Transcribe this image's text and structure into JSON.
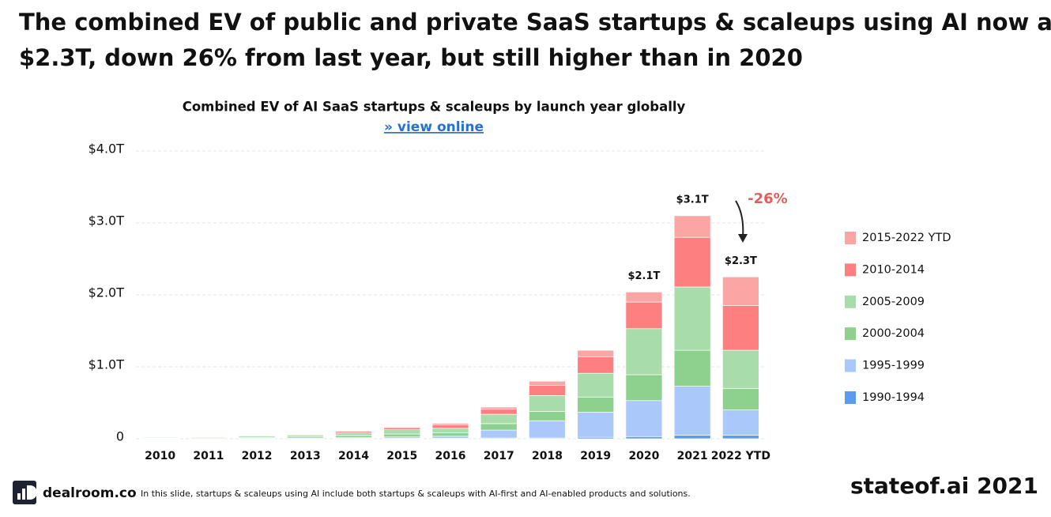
{
  "headline": [
    "The combined EV of public and private SaaS startups & scaleups using AI now amounts to",
    "$2.3T, down 26% from last year, but still higher than in 2020"
  ],
  "chart_data": {
    "type": "bar",
    "stacked": true,
    "title": "Combined EV of AI SaaS startups & scaleups by launch year globally",
    "link": "» view online",
    "categories": [
      "2010",
      "2011",
      "2012",
      "2013",
      "2014",
      "2015",
      "2016",
      "2017",
      "2018",
      "2019",
      "2020",
      "2021",
      "2022 YTD"
    ],
    "series": [
      {
        "name": "1990-1994",
        "color": "#5b9cf2",
        "values": [
          0,
          0,
          0,
          0,
          0.005,
          0.005,
          0.005,
          0.01,
          0.01,
          0.02,
          0.03,
          0.05,
          0.05
        ]
      },
      {
        "name": "1995-1999",
        "color": "#abc8fb",
        "values": [
          0.005,
          0.005,
          0.01,
          0.01,
          0.01,
          0.02,
          0.03,
          0.11,
          0.24,
          0.35,
          0.5,
          0.68,
          0.35
        ]
      },
      {
        "name": "2000-2004",
        "color": "#8ed08e",
        "values": [
          0.005,
          0.01,
          0.01,
          0.02,
          0.03,
          0.04,
          0.05,
          0.09,
          0.13,
          0.21,
          0.36,
          0.5,
          0.3
        ]
      },
      {
        "name": "2005-2009",
        "color": "#a8dcaa",
        "values": [
          0.01,
          0.01,
          0.02,
          0.02,
          0.04,
          0.06,
          0.06,
          0.13,
          0.22,
          0.33,
          0.64,
          0.88,
          0.53
        ]
      },
      {
        "name": "2010-2014",
        "color": "#fd7f7f",
        "values": [
          0,
          0.005,
          0.005,
          0.01,
          0.02,
          0.03,
          0.05,
          0.07,
          0.14,
          0.23,
          0.37,
          0.69,
          0.62
        ]
      },
      {
        "name": "2015-2022 YTD",
        "color": "#fca5a5",
        "values": [
          0,
          0,
          0,
          0,
          0.005,
          0.01,
          0.02,
          0.03,
          0.06,
          0.09,
          0.14,
          0.3,
          0.4
        ]
      }
    ],
    "ylim": [
      0,
      4
    ],
    "yticks": [
      0,
      {
        "value": 1,
        "label": "$1.0T"
      },
      {
        "value": 2,
        "label": "$2.0T"
      },
      {
        "value": 3,
        "label": "$3.0T"
      },
      {
        "value": 4,
        "label": "$4.0T"
      }
    ],
    "grid": true,
    "legend": "right",
    "annotations": [
      {
        "x": "2020",
        "text": "$2.1T"
      },
      {
        "x": "2021",
        "text": "$3.1T"
      },
      {
        "x": "2022 YTD",
        "text": "$2.3T"
      },
      {
        "x": "2022 YTD",
        "text": "-26%",
        "color": "#e35d5d"
      }
    ]
  },
  "footer": {
    "brand": "dealroom.co",
    "note": "In this slide, startups & scaleups using AI include both startups & scaleups with AI-first and AI-enabled products and solutions.",
    "source": "stateof.ai 2021"
  }
}
